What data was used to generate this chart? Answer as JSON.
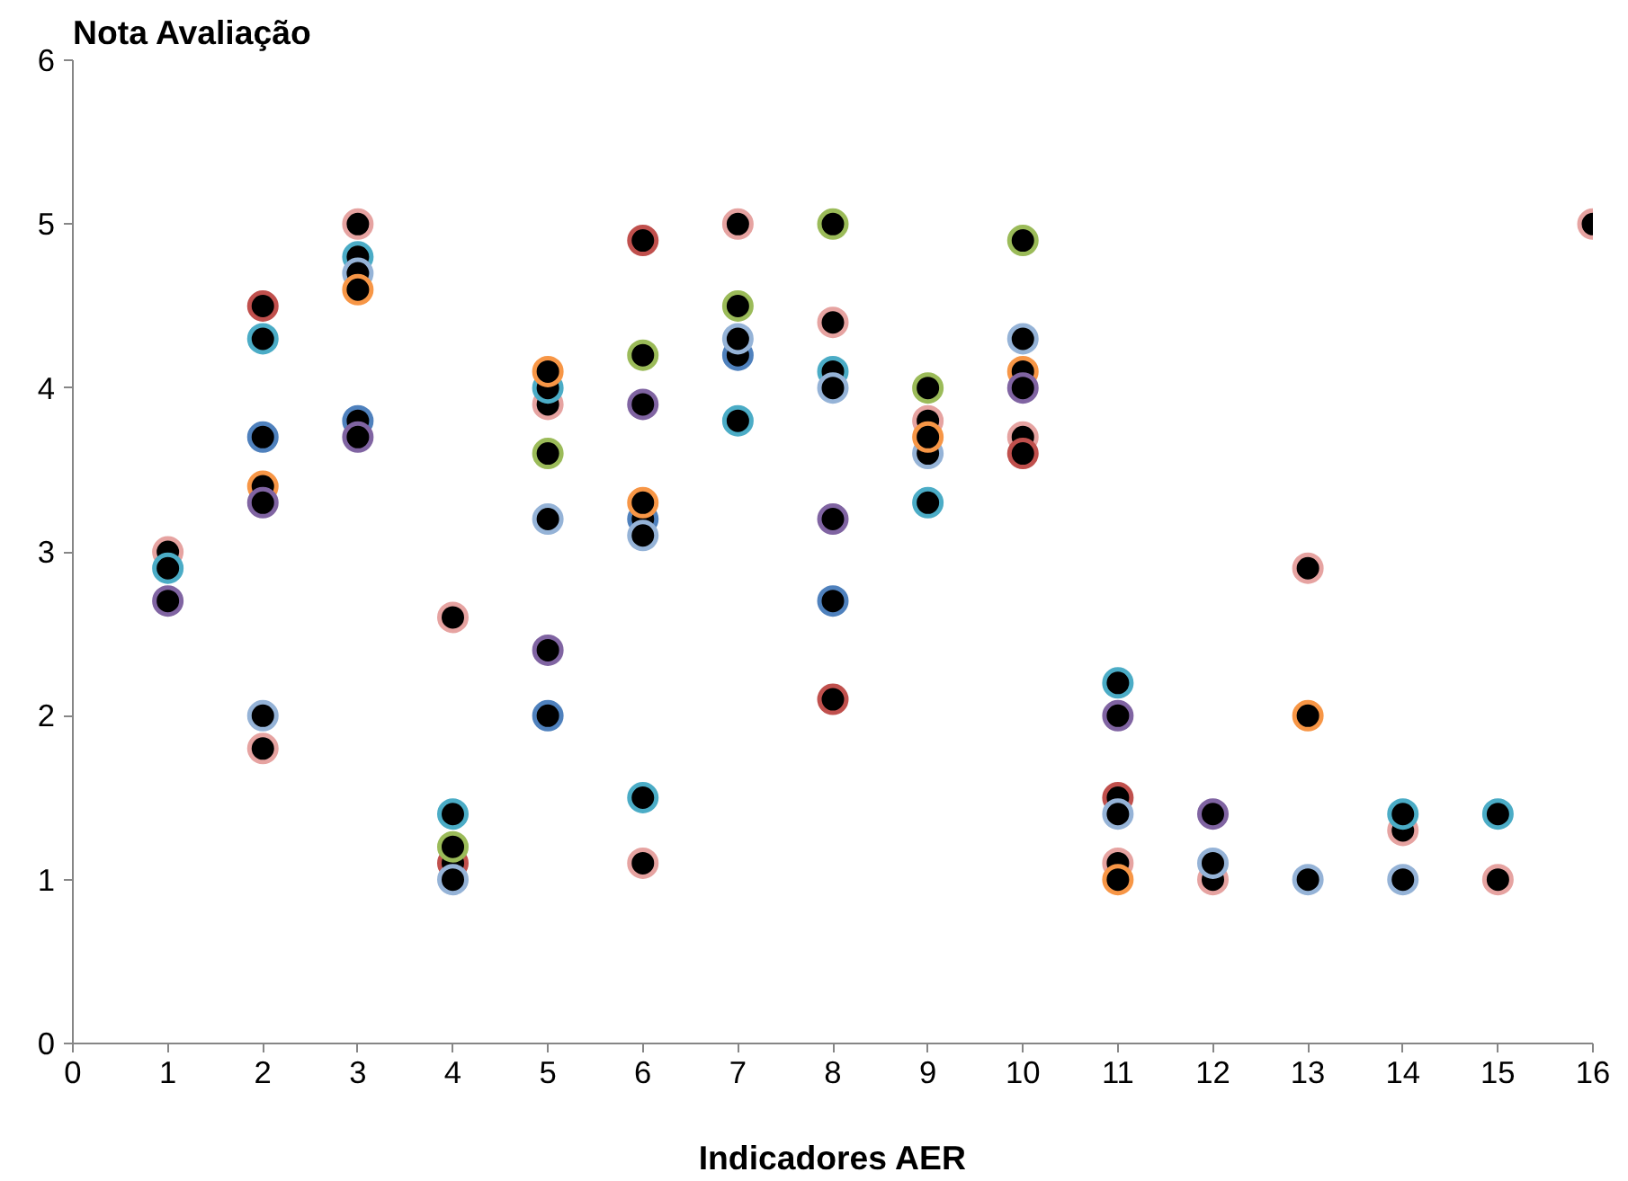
{
  "chart_data": {
    "type": "scatter",
    "xlabel": "Indicadores AER",
    "ylabel": "Nota Avaliação",
    "xlim": [
      0,
      16
    ],
    "xticks": [
      0,
      1,
      2,
      3,
      4,
      5,
      6,
      7,
      8,
      9,
      10,
      11,
      12,
      13,
      14,
      15,
      16
    ],
    "ylim": [
      0,
      6
    ],
    "yticks": [
      0,
      1,
      2,
      3,
      4,
      5,
      6
    ],
    "grid": false,
    "marker": "circle",
    "series": [
      {
        "color": "#e6a3a1",
        "x": [
          1,
          2,
          3,
          4,
          5,
          6,
          7,
          8,
          9,
          10,
          11,
          12,
          13,
          14,
          15,
          16
        ],
        "values": [
          3.0,
          1.8,
          5.0,
          2.6,
          3.9,
          1.1,
          5.0,
          4.4,
          3.8,
          3.7,
          1.1,
          1.0,
          2.9,
          1.3,
          1.0,
          5.0
        ]
      },
      {
        "color": "#c0504d",
        "x": [
          2,
          4,
          6,
          8,
          10,
          11
        ],
        "values": [
          4.5,
          1.1,
          4.9,
          2.1,
          3.6,
          1.5
        ]
      },
      {
        "color": "#4bacc6",
        "x": [
          1,
          2,
          3,
          4,
          5,
          6,
          7,
          8,
          9,
          11,
          14,
          15
        ],
        "values": [
          2.9,
          4.3,
          4.8,
          1.4,
          4.0,
          1.5,
          3.8,
          4.1,
          3.3,
          2.2,
          1.4,
          1.4
        ]
      },
      {
        "color": "#4f81bd",
        "x": [
          2,
          3,
          5,
          6,
          7,
          8
        ],
        "values": [
          3.7,
          3.8,
          2.0,
          3.2,
          4.2,
          2.7
        ]
      },
      {
        "color": "#95b3d7",
        "x": [
          2,
          3,
          4,
          5,
          6,
          7,
          8,
          9,
          10,
          11,
          12,
          13,
          14
        ],
        "values": [
          2.0,
          4.7,
          1.0,
          3.2,
          3.1,
          4.3,
          4.0,
          3.6,
          4.3,
          1.4,
          1.1,
          1.0,
          1.0
        ]
      },
      {
        "color": "#f79646",
        "x": [
          2,
          3,
          5,
          6,
          9,
          10,
          11,
          13
        ],
        "values": [
          3.4,
          4.6,
          4.1,
          3.3,
          3.7,
          4.1,
          1.0,
          2.0
        ]
      },
      {
        "color": "#8064a2",
        "x": [
          1,
          2,
          3,
          5,
          6,
          8,
          10,
          11,
          12
        ],
        "values": [
          2.7,
          3.3,
          3.7,
          2.4,
          3.9,
          3.2,
          4.0,
          2.0,
          1.4
        ]
      },
      {
        "color": "#9bbb59",
        "x": [
          4,
          5,
          6,
          7,
          8,
          9,
          10
        ],
        "values": [
          1.2,
          3.6,
          4.2,
          4.5,
          5.0,
          4.0,
          4.9
        ]
      }
    ]
  }
}
